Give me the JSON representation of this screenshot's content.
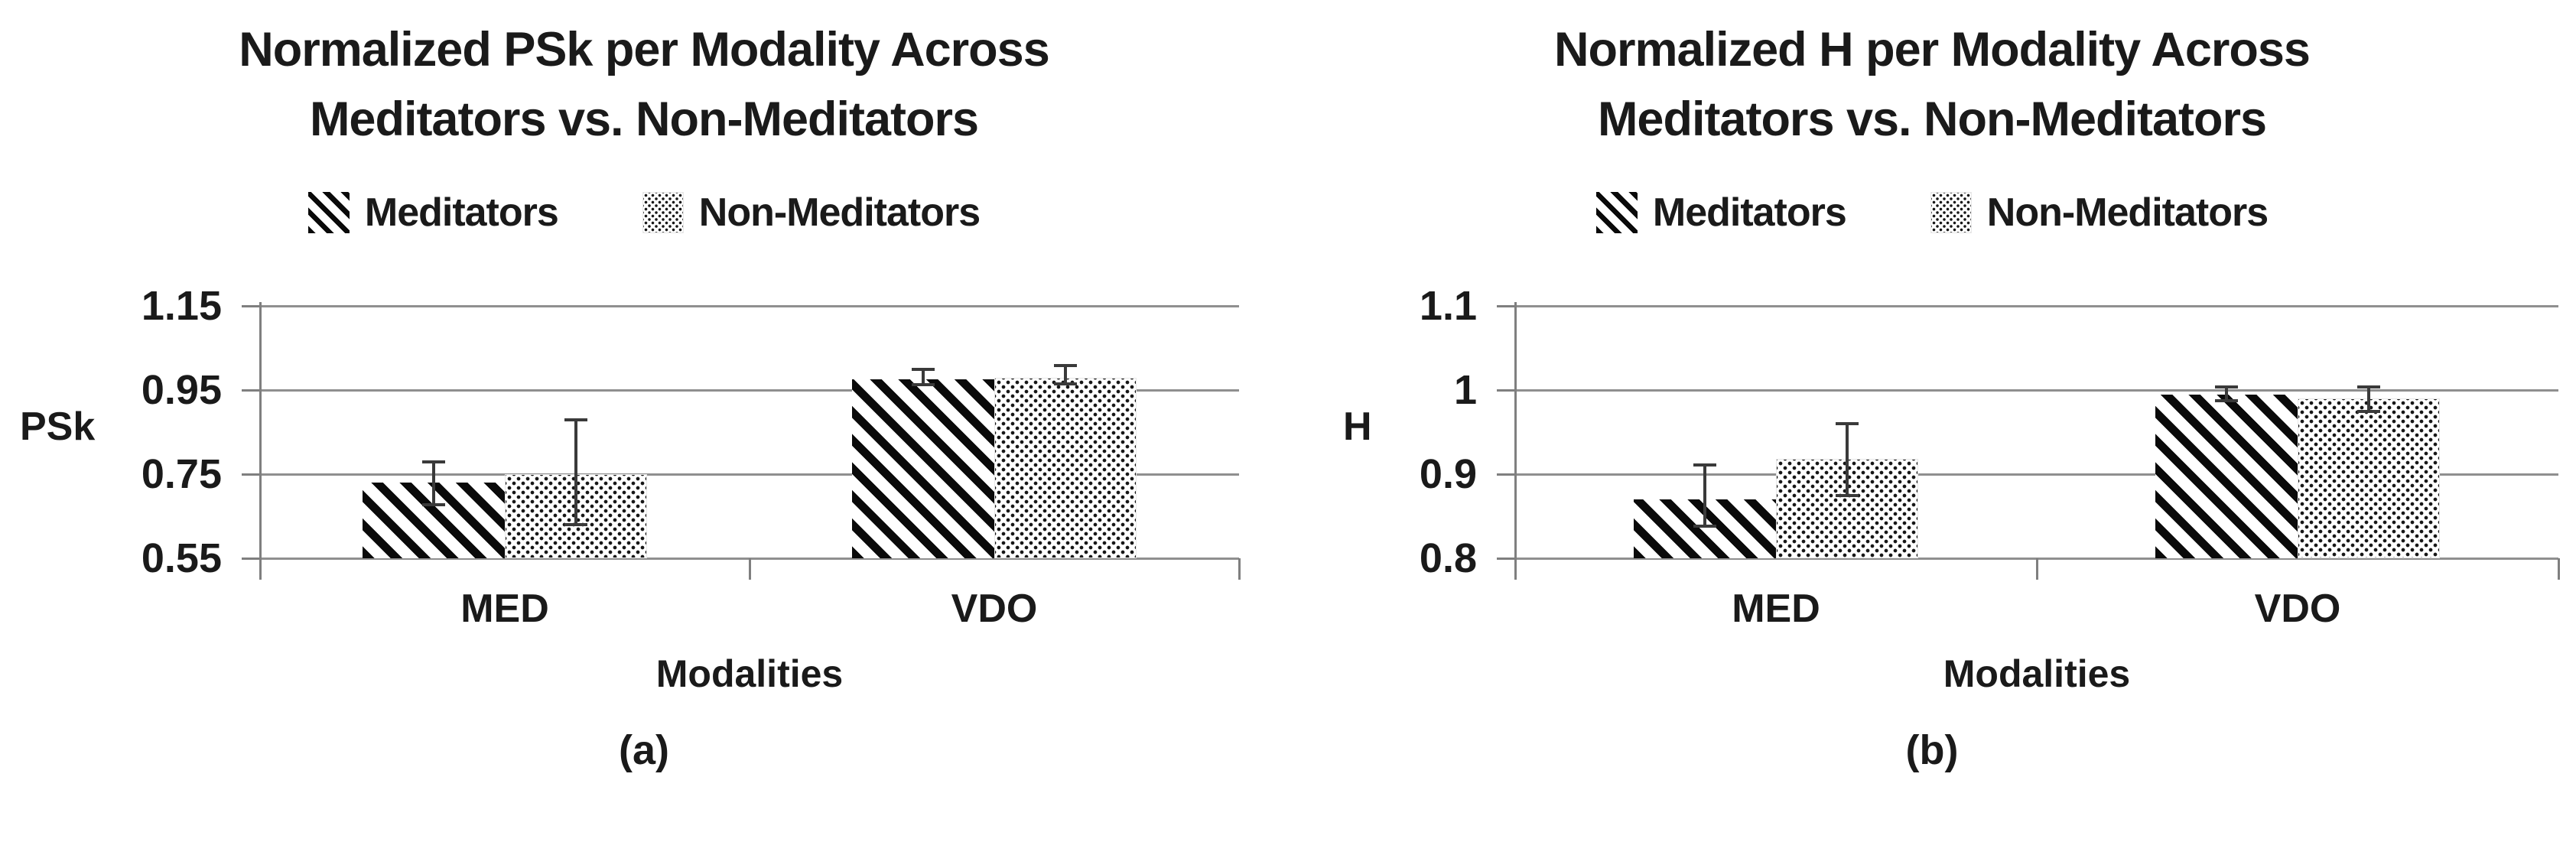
{
  "colors": {
    "background": "#ffffff",
    "bar_ink": "#0a0a0a",
    "gridline": "#8f8f8f",
    "axis": "#7f7f7f",
    "error_bar": "#3a3a3a",
    "text": "#1a1a1a"
  },
  "chart_data": [
    {
      "type": "bar",
      "caption": "(a)",
      "title": "Normalized PSk per Modality Across\nMeditators vs. Non-Meditators",
      "ylabel": "PSk",
      "xlabel": "Modalities",
      "categories": [
        "MED",
        "VDO"
      ],
      "ylim": [
        0.55,
        1.15
      ],
      "grid": true,
      "legend_position": "top",
      "yticks": [
        {
          "label": "1.15",
          "value": 1.15
        },
        {
          "label": "0.95",
          "value": 0.95
        },
        {
          "label": "0.75",
          "value": 0.75
        },
        {
          "label": "0.55",
          "value": 0.55
        }
      ],
      "series": [
        {
          "name": "Meditators",
          "pattern": "diagonal-stripes",
          "values": [
            0.73,
            0.975
          ],
          "error_plus": [
            0.05,
            0.024
          ],
          "error_minus": [
            0.052,
            0.012
          ]
        },
        {
          "name": "Non-Meditators",
          "pattern": "checker-dots",
          "values": [
            0.75,
            0.98
          ],
          "error_plus": [
            0.13,
            0.028
          ],
          "error_minus": [
            0.12,
            0.015
          ]
        }
      ]
    },
    {
      "type": "bar",
      "caption": "(b)",
      "title": "Normalized H per Modality Across\nMeditators vs. Non-Meditators",
      "ylabel": "H",
      "xlabel": "Modalities",
      "categories": [
        "MED",
        "VDO"
      ],
      "ylim": [
        0.8,
        1.1
      ],
      "grid": true,
      "legend_position": "top",
      "yticks": [
        {
          "label": "1.1",
          "value": 1.1
        },
        {
          "label": "1",
          "value": 1.0
        },
        {
          "label": "0.9",
          "value": 0.9
        },
        {
          "label": "0.8",
          "value": 0.8
        }
      ],
      "series": [
        {
          "name": "Meditators",
          "pattern": "diagonal-stripes",
          "values": [
            0.87,
            0.995
          ],
          "error_plus": [
            0.041,
            0.009
          ],
          "error_minus": [
            0.032,
            0.008
          ]
        },
        {
          "name": "Non-Meditators",
          "pattern": "checker-dots",
          "values": [
            0.918,
            0.99
          ],
          "error_plus": [
            0.042,
            0.014
          ],
          "error_minus": [
            0.043,
            0.015
          ]
        }
      ]
    }
  ]
}
